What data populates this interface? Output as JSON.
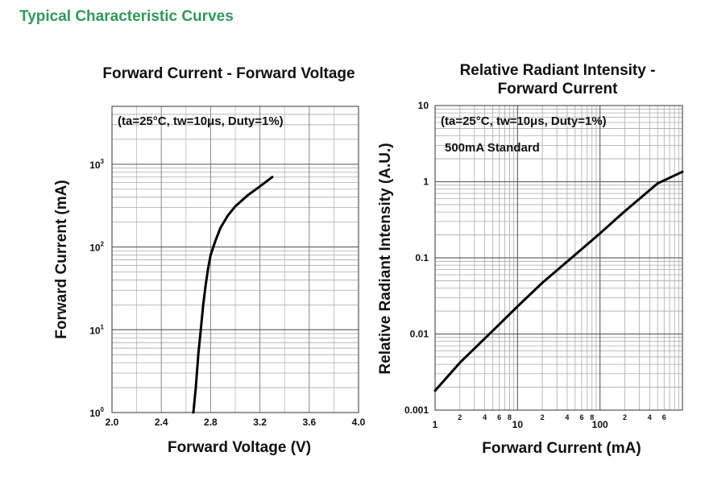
{
  "page": {
    "heading": "Typical Characteristic Curves"
  },
  "chart_data": [
    {
      "type": "line",
      "title": "Forward Current - Forward Voltage",
      "xlabel": "Forward Voltage (V)",
      "ylabel": "Forward Current (mA)",
      "xscale": "linear",
      "yscale": "log",
      "xlim": [
        2.0,
        4.0
      ],
      "ylim": [
        1,
        5000
      ],
      "grid": true,
      "xticks": [
        2.0,
        2.4,
        2.8,
        3.2,
        3.6,
        4.0
      ],
      "xtick_labels": [
        "2.0",
        "2.4",
        "2.8",
        "3.2",
        "3.6",
        "4.0"
      ],
      "yticks": [
        1,
        10,
        100,
        1000
      ],
      "ytick_labels": [
        {
          "base": "10",
          "exp": "0"
        },
        {
          "base": "10",
          "exp": "1"
        },
        {
          "base": "10",
          "exp": "2"
        },
        {
          "base": "10",
          "exp": "3"
        }
      ],
      "annotations": [
        "(ta=25°C, tw=10μs, Duty=1%)"
      ],
      "series": [
        {
          "x": [
            2.66,
            2.68,
            2.7,
            2.72,
            2.74,
            2.76,
            2.78,
            2.8,
            2.84,
            2.88,
            2.94,
            3.0,
            3.1,
            3.2,
            3.3
          ],
          "y": [
            1.0,
            2.0,
            5.0,
            10.0,
            20.0,
            35.0,
            55.0,
            80.0,
            120.0,
            170.0,
            240.0,
            310.0,
            420.0,
            540.0,
            700.0
          ]
        }
      ]
    },
    {
      "type": "line",
      "title": [
        "Relative Radiant Intensity -",
        "Forward Current"
      ],
      "xlabel": "Forward Current (mA)",
      "ylabel": "Relative Radiant Intensity (A.U.)",
      "xscale": "log",
      "yscale": "log",
      "xlim": [
        1,
        1000
      ],
      "ylim": [
        0.001,
        10
      ],
      "grid": true,
      "xticks_major": [
        1,
        10,
        100
      ],
      "xtick_labels_major": [
        "1",
        "10",
        "100"
      ],
      "xticks_minor_labeled": [
        2,
        4,
        6,
        8,
        20,
        40,
        60,
        80,
        200,
        400,
        600
      ],
      "xtick_labels_minor": [
        "2",
        "4",
        "6",
        "8",
        "2",
        "4",
        "6",
        "8",
        "2",
        "4",
        "6"
      ],
      "yticks": [
        0.001,
        0.01,
        0.1,
        1,
        10
      ],
      "ytick_labels": [
        "0.001",
        "0.01",
        "0.1",
        "1",
        "10"
      ],
      "annotations": [
        "(ta=25°C, tw=10μs, Duty=1%)",
        "500mA Standard"
      ],
      "series": [
        {
          "x": [
            1,
            2,
            5,
            10,
            20,
            50,
            100,
            200,
            500,
            1000
          ],
          "y": [
            0.0018,
            0.0042,
            0.011,
            0.023,
            0.047,
            0.11,
            0.21,
            0.41,
            0.95,
            1.35
          ]
        }
      ]
    }
  ]
}
